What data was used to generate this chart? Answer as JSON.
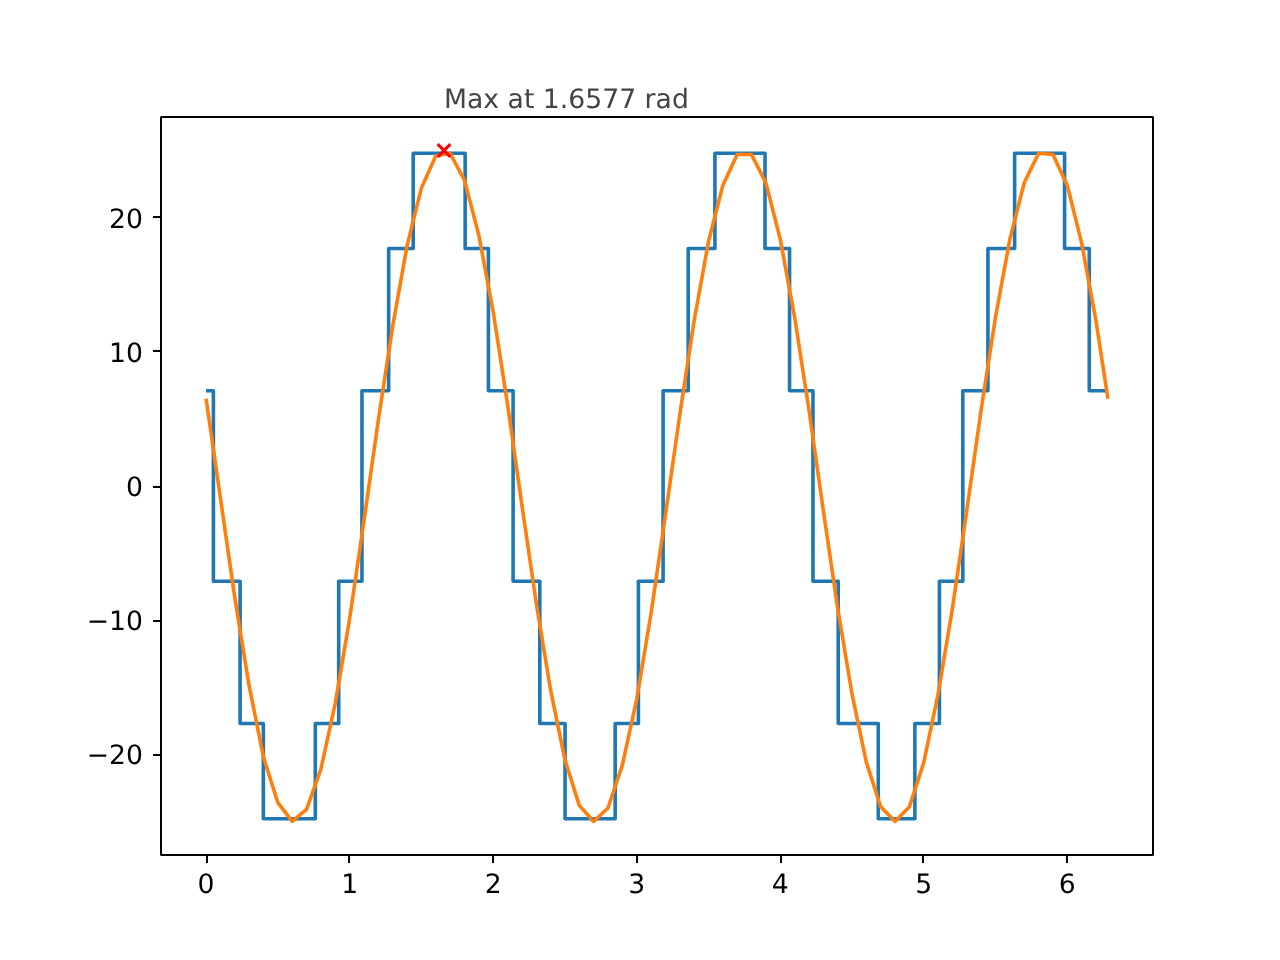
{
  "chart_data": {
    "type": "line",
    "xlim": [
      -0.314,
      6.597
    ],
    "ylim": [
      -27.5,
      27.5
    ],
    "xticks": [
      0,
      1,
      2,
      3,
      4,
      5,
      6
    ],
    "yticks": [
      {
        "value": -20,
        "label": "−20"
      },
      {
        "value": -10,
        "label": "−10"
      },
      0,
      10,
      20
    ],
    "grid": false,
    "series": [
      {
        "type": "step",
        "color": "#1f77b4",
        "x": [
          0,
          0.051,
          0.237,
          0.399,
          0.761,
          0.924,
          1.086,
          1.272,
          1.443,
          1.805,
          1.967,
          2.139,
          2.325,
          2.501,
          2.85,
          3.012,
          3.184,
          3.359,
          3.545,
          3.894,
          4.065,
          4.228,
          4.404,
          4.59,
          4.683,
          4.938,
          5.109,
          5.272,
          5.447,
          5.633,
          5.981,
          6.153,
          6.283
        ],
        "values": [
          7.1,
          -7.1,
          -17.7,
          -24.8,
          -17.7,
          -7.1,
          7.1,
          17.7,
          24.8,
          17.7,
          7.1,
          -7.1,
          -17.7,
          -24.8,
          -17.7,
          -7.1,
          7.1,
          17.7,
          24.8,
          17.7,
          7.1,
          -7.1,
          -17.7,
          -17.7,
          -24.8,
          -17.7,
          -7.1,
          7.1,
          17.7,
          24.8,
          17.7,
          7.1,
          7.1
        ]
      },
      {
        "color": "#ff7f0e",
        "x": [
          0,
          0.1,
          0.2,
          0.3,
          0.4,
          0.5,
          0.6,
          0.7,
          0.8,
          0.9,
          1.0,
          1.1,
          1.2,
          1.3,
          1.4,
          1.5,
          1.6,
          1.7,
          1.8,
          1.9,
          2.0,
          2.1,
          2.2,
          2.3,
          2.4,
          2.5,
          2.6,
          2.7,
          2.8,
          2.9,
          3.0,
          3.1,
          3.2,
          3.3,
          3.4,
          3.5,
          3.6,
          3.7,
          3.8,
          3.9,
          4.0,
          4.1,
          4.2,
          4.3,
          4.4,
          4.5,
          4.6,
          4.7,
          4.8,
          4.9,
          5.0,
          5.1,
          5.2,
          5.3,
          5.4,
          5.5,
          5.6,
          5.7,
          5.8,
          5.9,
          6.0,
          6.1,
          6.2,
          6.283
        ],
        "values": [
          6.5,
          -0.9,
          -8.3,
          -14.9,
          -20.2,
          -23.6,
          -25.0,
          -24.1,
          -21.1,
          -16.2,
          -9.9,
          -2.6,
          4.9,
          11.9,
          17.9,
          22.2,
          24.6,
          24.8,
          22.8,
          18.7,
          13.0,
          6.1,
          -1.4,
          -8.7,
          -15.2,
          -20.4,
          -23.8,
          -25.0,
          -24.0,
          -20.8,
          -15.9,
          -9.5,
          -2.2,
          5.3,
          12.3,
          18.2,
          22.4,
          24.7,
          24.7,
          22.6,
          18.4,
          12.6,
          5.7,
          -1.8,
          -9.1,
          -15.5,
          -20.6,
          -23.9,
          -25.0,
          -23.9,
          -20.6,
          -15.5,
          -9.1,
          -1.8,
          5.7,
          12.6,
          18.4,
          22.6,
          24.8,
          24.7,
          22.4,
          18.1,
          12.3,
          6.5
        ]
      },
      {
        "type": "scatter",
        "marker": "cross",
        "color": "#ff0000",
        "x": [
          1.6577
        ],
        "values": [
          25
        ]
      }
    ],
    "annotations": [
      {
        "text": "Max at 1.6577 rad",
        "x": 1.6577,
        "y": 25
      }
    ]
  }
}
